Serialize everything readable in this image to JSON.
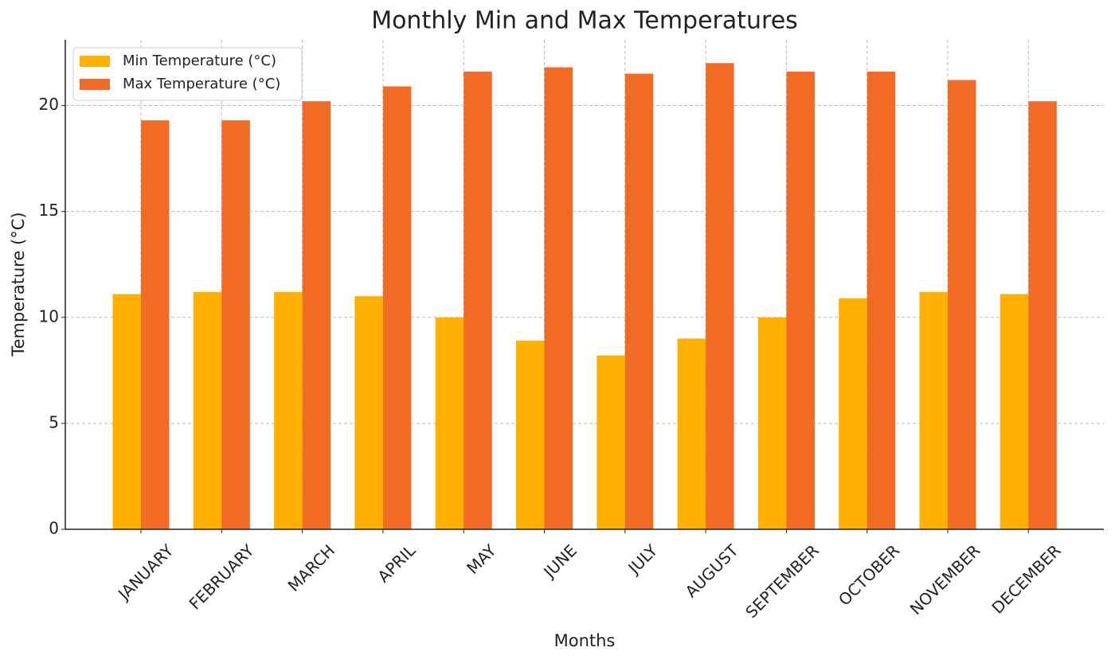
{
  "chart_data": {
    "type": "bar",
    "title": "Monthly Min and Max Temperatures",
    "x_label": "Months",
    "y_label": "Temperature (°C)",
    "categories": [
      "JANUARY",
      "FEBRUARY",
      "MARCH",
      "APRIL",
      "MAY",
      "JUNE",
      "JULY",
      "AUGUST",
      "SEPTEMBER",
      "OCTOBER",
      "NOVEMBER",
      "DECEMBER"
    ],
    "series": [
      {
        "name": "Min Temperature (°C)",
        "color": "#ffb000",
        "values": [
          11.1,
          11.2,
          11.2,
          11.0,
          10.0,
          8.9,
          8.2,
          9.0,
          10.0,
          10.9,
          11.2,
          11.1
        ]
      },
      {
        "name": "Max Temperature (°C)",
        "color": "#f26b24",
        "values": [
          19.3,
          19.3,
          20.2,
          20.9,
          21.6,
          21.8,
          21.5,
          22.0,
          21.6,
          21.6,
          21.2,
          20.2
        ]
      }
    ],
    "ylim": [
      0,
      23.1
    ],
    "yticks": [
      0,
      5,
      10,
      15,
      20
    ],
    "grid": true,
    "legend": "upper left"
  }
}
